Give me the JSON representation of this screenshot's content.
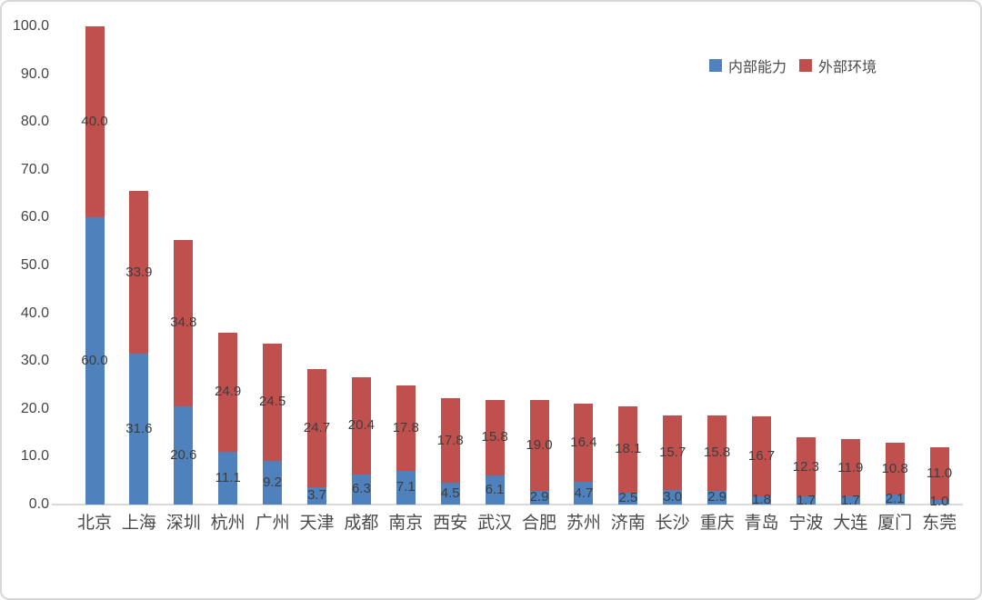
{
  "chart_data": {
    "type": "bar",
    "stacked": true,
    "title": "",
    "xlabel": "",
    "ylabel": "",
    "ylim": [
      0,
      100
    ],
    "ytick_step": 10,
    "ytick_labels": [
      "0.0",
      "10.0",
      "20.0",
      "30.0",
      "40.0",
      "50.0",
      "60.0",
      "70.0",
      "80.0",
      "90.0",
      "100.0"
    ],
    "grid": false,
    "legend_position": "top-right",
    "categories": [
      "北京",
      "上海",
      "深圳",
      "杭州",
      "广州",
      "天津",
      "成都",
      "南京",
      "西安",
      "武汉",
      "合肥",
      "苏州",
      "济南",
      "长沙",
      "重庆",
      "青岛",
      "宁波",
      "大连",
      "厦门",
      "东莞"
    ],
    "series": [
      {
        "name": "内部能力",
        "color": "#4F81BD",
        "values": [
          60.0,
          31.6,
          20.6,
          11.1,
          9.2,
          3.7,
          6.3,
          7.1,
          4.5,
          6.1,
          2.9,
          4.7,
          2.5,
          3.0,
          2.9,
          1.8,
          1.7,
          1.7,
          2.1,
          1.0
        ]
      },
      {
        "name": "外部环境",
        "color": "#C0504D",
        "values": [
          40.0,
          33.9,
          34.8,
          24.9,
          24.5,
          24.7,
          20.4,
          17.8,
          17.8,
          15.8,
          19.0,
          16.4,
          18.1,
          15.7,
          15.8,
          16.7,
          12.3,
          11.9,
          10.8,
          11.0
        ]
      }
    ]
  }
}
